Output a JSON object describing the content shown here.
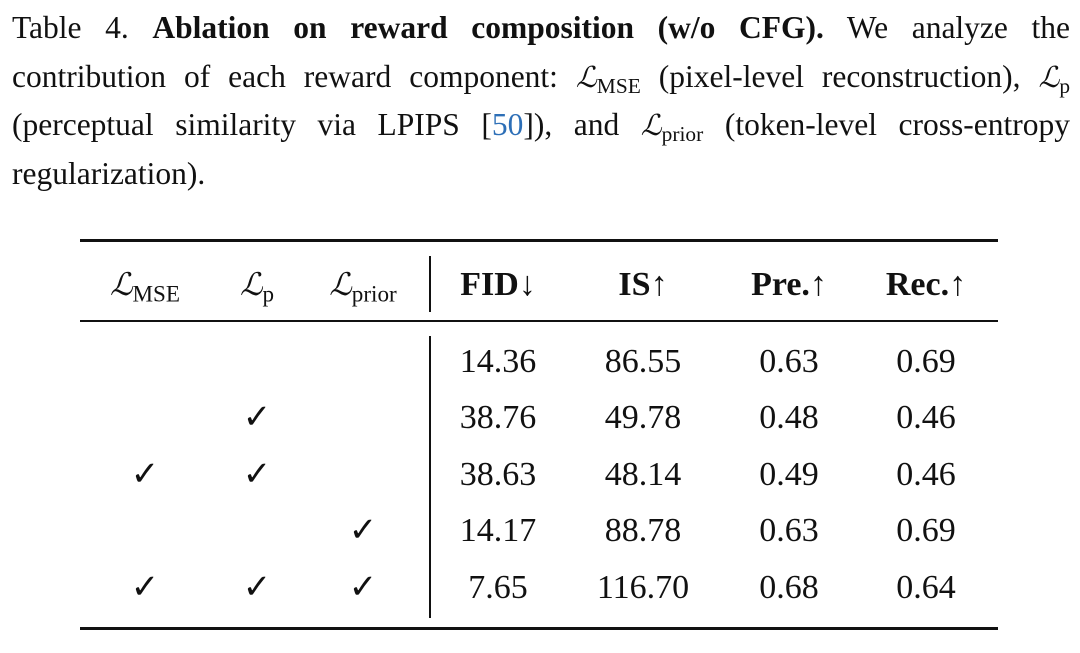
{
  "caption": {
    "parts": [
      {
        "style": "normal",
        "text": "Table 4."
      },
      {
        "style": "bold",
        "text": "Ablation on reward composition (w/o CFG)."
      },
      {
        "style": "normal",
        "text": "We analyze the contribution of each reward component:"
      },
      {
        "symbol": "ℒ",
        "sub": "MSE"
      },
      {
        "style": "normal",
        "text": "(pixel-level reconstruction),"
      },
      {
        "symbol": "ℒ",
        "sub": "p"
      },
      {
        "style": "normal",
        "text": "(perceptual similarity via LPIPS ["
      },
      {
        "style": "cite",
        "text": "50"
      },
      {
        "style": "normal",
        "text": "]),",
        "glue": true
      },
      {
        "style": "normal",
        "text": "and"
      },
      {
        "symbol": "ℒ",
        "sub": "prior"
      },
      {
        "style": "normal",
        "text": "(token-level cross-entropy regularization)."
      }
    ]
  },
  "table": {
    "header": [
      {
        "symbol": "ℒ",
        "sub": "MSE"
      },
      {
        "symbol": "ℒ",
        "sub": "p"
      },
      {
        "symbol": "ℒ",
        "sub": "prior"
      },
      "FID↓",
      "IS↑",
      "Pre.↑",
      "Rec.↑"
    ],
    "rows": [
      [
        null,
        null,
        null,
        "14.36",
        "86.55",
        "0.63",
        "0.69"
      ],
      [
        null,
        "✓",
        null,
        "38.76",
        "49.78",
        "0.48",
        "0.46"
      ],
      [
        "✓",
        "✓",
        null,
        "38.63",
        "48.14",
        "0.49",
        "0.46"
      ],
      [
        null,
        null,
        "✓",
        "14.17",
        "88.78",
        "0.63",
        "0.69"
      ],
      [
        "✓",
        "✓",
        "✓",
        "7.65",
        "116.70",
        "0.68",
        "0.64"
      ]
    ]
  }
}
